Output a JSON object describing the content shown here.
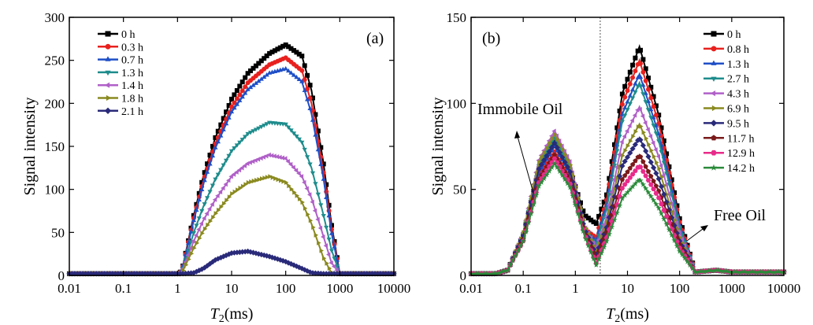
{
  "chart_data": [
    {
      "type": "line",
      "panel_label": "(a)",
      "xlabel_var": "T",
      "xlabel_sub": "2",
      "xlabel_unit": "(ms)",
      "ylabel": "Signal intensity",
      "xscale": "log",
      "xlim": [
        0.01,
        10000
      ],
      "ylim": [
        0,
        300
      ],
      "xticks": [
        "0.01",
        "0.1",
        "1",
        "10",
        "100",
        "1000",
        "10000"
      ],
      "yticks": [
        "0",
        "50",
        "100",
        "150",
        "200",
        "250",
        "300"
      ],
      "legend_position": "top-left",
      "x": [
        0.01,
        1,
        1.2,
        2,
        3,
        5,
        10,
        20,
        50,
        100,
        200,
        300,
        500,
        700,
        1000,
        10000
      ],
      "series": [
        {
          "name": "0 h",
          "color": "#000000",
          "marker": "square",
          "values": [
            2,
            2,
            5,
            70,
            115,
            160,
            205,
            235,
            258,
            268,
            255,
            215,
            130,
            60,
            2,
            2
          ]
        },
        {
          "name": "0.3 h",
          "color": "#e8211e",
          "marker": "circle",
          "values": [
            2,
            2,
            5,
            67,
            110,
            153,
            196,
            224,
            245,
            253,
            238,
            200,
            120,
            55,
            2,
            2
          ]
        },
        {
          "name": "0.7 h",
          "color": "#1f4fc7",
          "marker": "triangle-up",
          "values": [
            2,
            2,
            5,
            64,
            106,
            148,
            190,
            216,
            235,
            240,
            225,
            188,
            112,
            50,
            2,
            2
          ]
        },
        {
          "name": "1.3 h",
          "color": "#1e8c8c",
          "marker": "triangle-down",
          "values": [
            2,
            2,
            4,
            50,
            80,
            112,
            145,
            165,
            178,
            176,
            155,
            125,
            70,
            30,
            2,
            2
          ]
        },
        {
          "name": "1.4 h",
          "color": "#b060c8",
          "marker": "triangle-left",
          "values": [
            2,
            2,
            4,
            40,
            64,
            88,
            115,
            130,
            140,
            136,
            115,
            90,
            45,
            15,
            2,
            2
          ]
        },
        {
          "name": "1.8 h",
          "color": "#8a8a20",
          "marker": "triangle-right",
          "values": [
            2,
            2,
            3,
            32,
            52,
            72,
            95,
            108,
            115,
            108,
            85,
            60,
            20,
            3,
            2,
            2
          ]
        },
        {
          "name": "2.1 h",
          "color": "#2a2a7a",
          "marker": "diamond",
          "values": [
            2,
            2,
            2,
            3,
            8,
            18,
            26,
            28,
            22,
            16,
            8,
            3,
            2,
            2,
            2,
            2
          ]
        }
      ]
    },
    {
      "type": "line",
      "panel_label": "(b)",
      "xlabel_var": "T",
      "xlabel_sub": "2",
      "xlabel_unit": "(ms)",
      "ylabel": "Signal intensity",
      "xscale": "log",
      "xlim": [
        0.01,
        10000
      ],
      "ylim": [
        0,
        150
      ],
      "xticks": [
        "0.01",
        "0.1",
        "1",
        "10",
        "100",
        "1000",
        "10000"
      ],
      "yticks": [
        "0",
        "50",
        "100",
        "150"
      ],
      "legend_position": "top-right",
      "cutoff_line_x": 3,
      "annotations": [
        "Immobile Oil",
        "Free Oil"
      ],
      "x": [
        0.01,
        0.03,
        0.05,
        0.1,
        0.2,
        0.4,
        0.8,
        1.5,
        2.5,
        4,
        8,
        17,
        40,
        100,
        200,
        500,
        1000,
        10000
      ],
      "series": [
        {
          "name": "0 h",
          "color": "#000000",
          "marker": "square",
          "values": [
            1,
            1,
            3,
            23,
            62,
            78,
            61,
            35,
            30,
            47,
            106,
            133,
            93,
            33,
            2,
            3,
            2,
            2
          ]
        },
        {
          "name": "0.8 h",
          "color": "#e8211e",
          "marker": "circle",
          "values": [
            1,
            1,
            3,
            22,
            58,
            72,
            56,
            27,
            22,
            44,
            100,
            125,
            88,
            31,
            2,
            3,
            2,
            2
          ]
        },
        {
          "name": "1.3 h",
          "color": "#1f4fc7",
          "marker": "triangle-up",
          "values": [
            1,
            1,
            3,
            23,
            60,
            75,
            59,
            26,
            20,
            41,
            94,
            117,
            82,
            29,
            2,
            3,
            2,
            2
          ]
        },
        {
          "name": "2.7 h",
          "color": "#1e8c8c",
          "marker": "triangle-down",
          "values": [
            1,
            1,
            3,
            24,
            64,
            80,
            62,
            28,
            18,
            39,
            90,
            112,
            78,
            28,
            2,
            3,
            2,
            2
          ]
        },
        {
          "name": "4.3 h",
          "color": "#b060c8",
          "marker": "triangle-left",
          "values": [
            1,
            1,
            3,
            25,
            67,
            84,
            66,
            29,
            16,
            34,
            78,
            98,
            69,
            25,
            2,
            3,
            2,
            2
          ]
        },
        {
          "name": "6.9 h",
          "color": "#8a8a20",
          "marker": "triangle-right",
          "values": [
            1,
            1,
            3,
            25,
            66,
            82,
            64,
            29,
            14,
            31,
            70,
            88,
            62,
            22,
            2,
            3,
            2,
            2
          ]
        },
        {
          "name": "9.5 h",
          "color": "#2a2a7a",
          "marker": "diamond",
          "values": [
            1,
            1,
            3,
            23,
            62,
            77,
            60,
            27,
            12,
            28,
            64,
            80,
            56,
            20,
            2,
            3,
            2,
            2
          ]
        },
        {
          "name": "11.7 h",
          "color": "#7a1a1a",
          "marker": "pentagon",
          "values": [
            1,
            1,
            3,
            21,
            56,
            70,
            55,
            25,
            10,
            25,
            56,
            70,
            49,
            18,
            2,
            3,
            2,
            2
          ]
        },
        {
          "name": "12.9 h",
          "color": "#e82a8a",
          "marker": "hexagon",
          "values": [
            1,
            1,
            3,
            20,
            54,
            68,
            53,
            24,
            7,
            22,
            51,
            64,
            45,
            16,
            2,
            3,
            2,
            2
          ]
        },
        {
          "name": "14.2 h",
          "color": "#2a8a3a",
          "marker": "star",
          "values": [
            1,
            1,
            3,
            20,
            52,
            65,
            51,
            23,
            6,
            20,
            45,
            56,
            39,
            14,
            2,
            3,
            2,
            2
          ]
        }
      ]
    }
  ]
}
